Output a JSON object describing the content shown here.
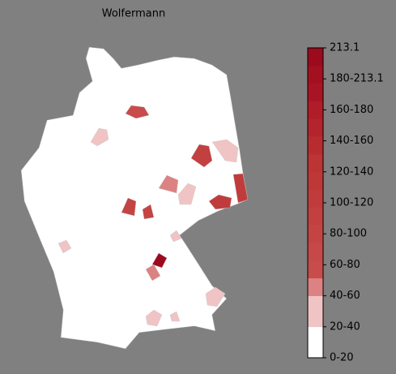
{
  "title": "Wolfermann",
  "colorbar": {
    "labels": [
      "0-20",
      "20-40",
      "40-60",
      "60-80",
      "80-100",
      "100-120",
      "120-140",
      "140-160",
      "160-180",
      "180-213.1",
      "213.1"
    ],
    "colors": [
      "#ffffff",
      "#f0c4c4",
      "#dc8282",
      "#c84c4c",
      "#c64848",
      "#c44444",
      "#c24040",
      "#c03c3c",
      "#be3838",
      "#bc3434",
      "#b82c30",
      "#b4242c",
      "#b01c28",
      "#a81424",
      "#a41020",
      "#9c0a1e"
    ]
  }
}
